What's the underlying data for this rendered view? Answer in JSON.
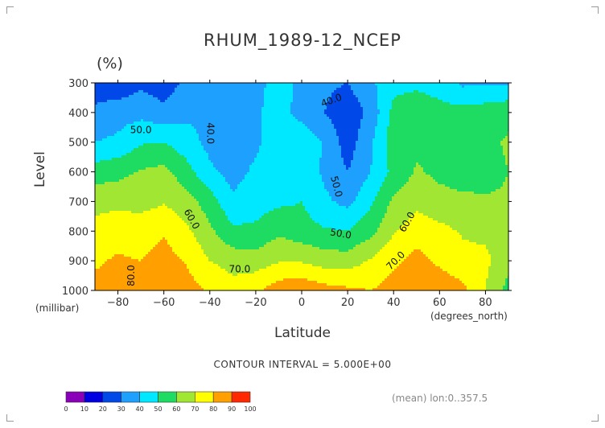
{
  "chart_data": {
    "type": "heatmap",
    "title": "RHUM_1989-12_NCEP",
    "units_label": "(%)",
    "ylabel": "Level",
    "ylabel_units": "(millibar)",
    "xlabel": "Latitude",
    "xlabel_units": "(degrees_north)",
    "xlim": [
      -90,
      90
    ],
    "ylim": [
      1000,
      300
    ],
    "x_ticks": [
      -80,
      -60,
      -40,
      -20,
      0,
      20,
      40,
      60,
      80
    ],
    "x_tick_labels": [
      "−80",
      "−60",
      "−40",
      "−20",
      "0",
      "20",
      "40",
      "60",
      "80"
    ],
    "y_ticks": [
      300,
      400,
      500,
      600,
      700,
      800,
      900,
      1000
    ],
    "y_tick_labels": [
      "300",
      "400",
      "500",
      "600",
      "700",
      "800",
      "900",
      "1000"
    ],
    "contour_interval_text": "CONTOUR INTERVAL = 5.000E+00",
    "mean_text": "(mean) lon:0..357.5",
    "contour_labels": [
      {
        "text": "40.0",
        "lat": 13,
        "lev": 360,
        "rot": -20
      },
      {
        "text": "40.0",
        "lat": -40,
        "lev": 470,
        "rot": 90
      },
      {
        "text": "50.0",
        "lat": -70,
        "lev": 460,
        "rot": 0
      },
      {
        "text": "50.0",
        "lat": 15,
        "lev": 650,
        "rot": 75
      },
      {
        "text": "50.0",
        "lat": 17,
        "lev": 810,
        "rot": 10
      },
      {
        "text": "60.0",
        "lat": -48,
        "lev": 760,
        "rot": 60
      },
      {
        "text": "60.0",
        "lat": 46,
        "lev": 770,
        "rot": -60
      },
      {
        "text": "70.0",
        "lat": -27,
        "lev": 930,
        "rot": 0
      },
      {
        "text": "70.0",
        "lat": 41,
        "lev": 900,
        "rot": -45
      },
      {
        "text": "80.0",
        "lat": -74,
        "lev": 950,
        "rot": -90
      }
    ],
    "levels": [
      300,
      400,
      500,
      600,
      700,
      800,
      900,
      1000
    ],
    "latitudes": [
      -90,
      -80,
      -70,
      -60,
      -50,
      -40,
      -30,
      -20,
      -10,
      0,
      10,
      20,
      30,
      40,
      50,
      60,
      70,
      80,
      90
    ],
    "values": [
      [
        25,
        22,
        28,
        24,
        33,
        40,
        37,
        37,
        44,
        38,
        32,
        30,
        38,
        47,
        48,
        46,
        38,
        39,
        38
      ],
      [
        32,
        36,
        37,
        33,
        38,
        39,
        36,
        39,
        43,
        37,
        30,
        23,
        33,
        53,
        56,
        53,
        54,
        55,
        58
      ],
      [
        40,
        42,
        49,
        50,
        44,
        37,
        35,
        38,
        46,
        46,
        39,
        25,
        38,
        56,
        58,
        58,
        59,
        58,
        61
      ],
      [
        55,
        57,
        61,
        63,
        54,
        42,
        36,
        42,
        47,
        48,
        38,
        30,
        40,
        53,
        61,
        58,
        56,
        57,
        60
      ],
      [
        67,
        67,
        66,
        69,
        64,
        55,
        42,
        46,
        48,
        50,
        42,
        37,
        48,
        62,
        67,
        63,
        62,
        61,
        61
      ],
      [
        73,
        77,
        76,
        79,
        72,
        62,
        52,
        52,
        58,
        54,
        51,
        50,
        57,
        69,
        76,
        73,
        69,
        68,
        68
      ],
      [
        79,
        81,
        80,
        84,
        79,
        70,
        66,
        65,
        69,
        69,
        65,
        65,
        71,
        78,
        83,
        78,
        73,
        72,
        64
      ],
      [
        82,
        84,
        85,
        90,
        84,
        79,
        74,
        78,
        86,
        88,
        84,
        82,
        80,
        84,
        89,
        87,
        83,
        70,
        56
      ]
    ],
    "color_bins": [
      {
        "min": 0,
        "max": 10,
        "color": "#8a00b8"
      },
      {
        "min": 10,
        "max": 20,
        "color": "#0000e0"
      },
      {
        "min": 20,
        "max": 30,
        "color": "#0048e8"
      },
      {
        "min": 30,
        "max": 40,
        "color": "#1ea0ff"
      },
      {
        "min": 40,
        "max": 50,
        "color": "#00e8ff"
      },
      {
        "min": 50,
        "max": 60,
        "color": "#1edc62"
      },
      {
        "min": 60,
        "max": 70,
        "color": "#a0e632"
      },
      {
        "min": 70,
        "max": 80,
        "color": "#ffff00"
      },
      {
        "min": 80,
        "max": 90,
        "color": "#ffa000"
      },
      {
        "min": 90,
        "max": 100,
        "color": "#ff2800"
      }
    ],
    "colorbar_labels": [
      "0",
      "10",
      "20",
      "30",
      "40",
      "50",
      "60",
      "70",
      "80",
      "90",
      "100"
    ],
    "grid": false
  }
}
